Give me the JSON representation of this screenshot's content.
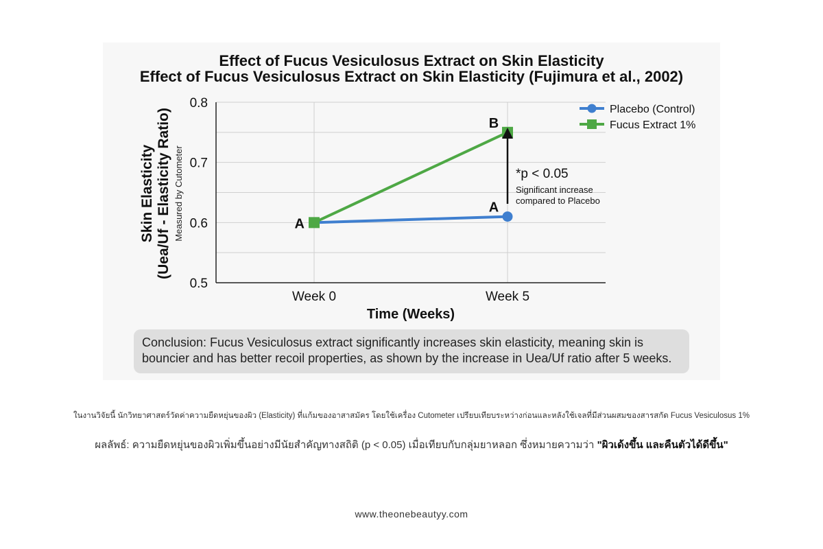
{
  "colors": {
    "placebo": "#3f7fcf",
    "fucus": "#4ea845",
    "text": "#111111",
    "grid": "#cfcfcf"
  },
  "header": {
    "title_line1": "Effect of Fucus Vesiculosus Extract on Skin Elasticity",
    "title_line2": "Effect of Fucus Vesiculosus Extract on Skin Elasticity (Fujimura et al., 2002)"
  },
  "chart_data": {
    "type": "line",
    "title": "Effect of Fucus Vesiculosus Extract on Skin Elasticity (Fujimura et al., 2002)",
    "categories": [
      "Week 0",
      "Week 5"
    ],
    "xlabel": "Time (Weeks)",
    "ylabel_line1": "Skin Elasticity",
    "ylabel_line2": "(Uea/Uf - Elasticity Ratio)",
    "ylabel_sub": "Measured by Cutometer",
    "ylim": [
      0.5,
      0.8
    ],
    "yticks": [
      "0.5",
      "0.6",
      "0.7",
      "0.8"
    ],
    "grid": true,
    "legend_position": "top-right",
    "series": [
      {
        "name": "Placebo (Control)",
        "values": [
          0.6,
          0.61
        ],
        "marker": "circle",
        "color": "#3f7fcf",
        "labels": [
          "",
          "A"
        ]
      },
      {
        "name": "Fucus Extract 1%",
        "values": [
          0.6,
          0.75
        ],
        "marker": "square",
        "color": "#4ea845",
        "labels": [
          "A",
          "B"
        ]
      }
    ],
    "annotation": {
      "sig": "*p < 0.05",
      "note_line1": "Significant increase",
      "note_line2": "compared to Placebo"
    }
  },
  "conclusion": "Conclusion: Fucus Vesiculosus extract significantly increases skin elasticity, meaning skin is bouncier and has better recoil properties, as shown by the increase in Uea/Uf ratio after 5 weeks.",
  "thai": {
    "line1": "ในงานวิจัยนี้ นักวิทยาศาสตร์วัดค่าความยืดหยุ่นของผิว (Elasticity) ที่แก้มของอาสาสมัคร โดยใช้เครื่อง Cutometer เปรียบเทียบระหว่างก่อนและหลังใช้เจลที่มีส่วนผสมของสารสกัด Fucus Vesiculosus 1%",
    "line2_plain": "ผลลัพธ์: ความยืดหยุ่นของผิวเพิ่มขึ้นอย่างมีนัยสำคัญทางสถิติ (p < 0.05) เมื่อเทียบกับกลุ่มยาหลอก ซึ่งหมายความว่า ",
    "line2_bold": "\"ผิวเด้งขึ้น และคืนตัวได้ดีขึ้น\""
  },
  "footer": {
    "url": "www.theonebeautyy.com"
  }
}
